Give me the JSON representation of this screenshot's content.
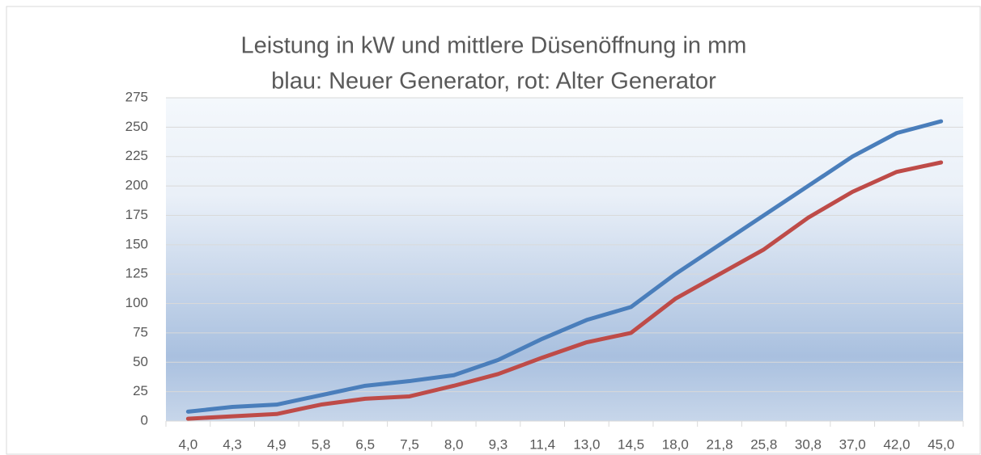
{
  "chart_data": {
    "type": "line",
    "title": "Leistung in kW und mittlere Düsenöffnung in mm",
    "subtitle": "blau: Neuer Generator, rot: Alter Generator",
    "categories": [
      "4,0",
      "4,3",
      "4,9",
      "5,8",
      "6,5",
      "7,5",
      "8,0",
      "9,3",
      "11,4",
      "13,0",
      "14,5",
      "18,0",
      "21,8",
      "25,8",
      "30,8",
      "37,0",
      "42,0",
      "45,0"
    ],
    "series": [
      {
        "color": "#4a7ebb",
        "values": [
          8,
          12,
          14,
          22,
          30,
          34,
          39,
          52,
          70,
          86,
          97,
          125,
          150,
          175,
          200,
          225,
          245,
          255
        ]
      },
      {
        "color": "#be4b48",
        "values": [
          2,
          4,
          6,
          14,
          19,
          21,
          30,
          40,
          54,
          67,
          75,
          104,
          125,
          146,
          173,
          195,
          212,
          220
        ]
      }
    ],
    "ylim": [
      0,
      275
    ],
    "yticks": [
      0,
      25,
      50,
      75,
      100,
      125,
      150,
      175,
      200,
      225,
      250,
      275
    ],
    "grid": true
  }
}
